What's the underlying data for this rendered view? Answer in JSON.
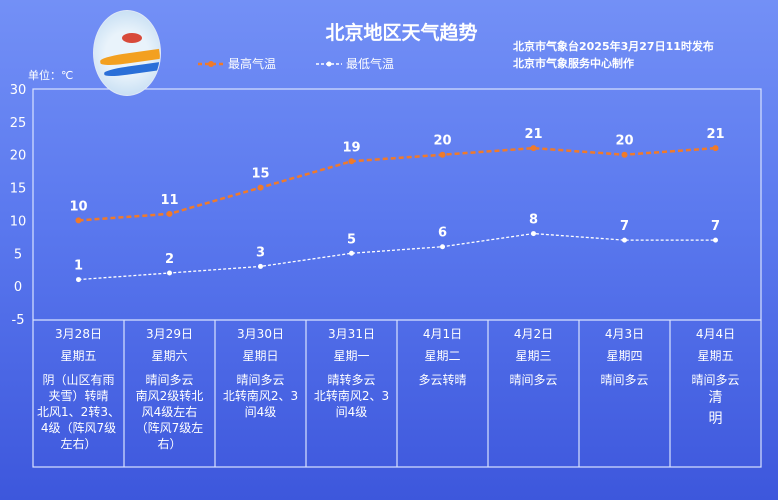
{
  "header": {
    "title": "北京地区天气趋势",
    "issuer_line1": "北京市气象台2025年3月27日11时发布",
    "issuer_line2": "北京市气象服务中心制作",
    "unit_label": "单位：℃"
  },
  "chart_data": {
    "type": "line",
    "title": "北京地区天气趋势",
    "ylabel": "单位：℃",
    "ylim": [
      -5,
      30
    ],
    "yticks": [
      30,
      25,
      20,
      15,
      10,
      5,
      0,
      -5
    ],
    "grid": false,
    "legend_placement": "top",
    "categories": [
      "3月28日",
      "3月29日",
      "3月30日",
      "3月31日",
      "4月1日",
      "4月2日",
      "4月3日",
      "4月4日"
    ],
    "series": [
      {
        "name": "最高气温",
        "color": "#f07a2a",
        "style": "dashed",
        "values": [
          10,
          11,
          15,
          19,
          20,
          21,
          20,
          21
        ]
      },
      {
        "name": "最低气温",
        "color": "#ffffff",
        "style": "dashed",
        "values": [
          1,
          2,
          3,
          5,
          6,
          8,
          7,
          7
        ]
      }
    ]
  },
  "table": [
    {
      "date": "3月28日",
      "weekday": "星期五",
      "weather": [
        "阴（山区有雨",
        "夹雪）转晴",
        "北风1、2转3、",
        "4级（阵风7级",
        "左右）"
      ]
    },
    {
      "date": "3月29日",
      "weekday": "星期六",
      "weather": [
        "晴间多云",
        "南风2级转北",
        "风4级左右",
        "（阵风7级左",
        "右）"
      ]
    },
    {
      "date": "3月30日",
      "weekday": "星期日",
      "weather": [
        "晴间多云",
        "北转南风2、3",
        "间4级"
      ]
    },
    {
      "date": "3月31日",
      "weekday": "星期一",
      "weather": [
        "晴转多云",
        "北转南风2、3",
        "间4级"
      ]
    },
    {
      "date": "4月1日",
      "weekday": "星期二",
      "weather": [
        "多云转晴"
      ]
    },
    {
      "date": "4月2日",
      "weekday": "星期三",
      "weather": [
        "晴间多云"
      ]
    },
    {
      "date": "4月3日",
      "weekday": "星期四",
      "weather": [
        "晴间多云"
      ]
    },
    {
      "date": "4月4日",
      "weekday": "星期五",
      "weather": [
        "晴间多云"
      ],
      "festival": [
        "清",
        "明"
      ]
    }
  ]
}
